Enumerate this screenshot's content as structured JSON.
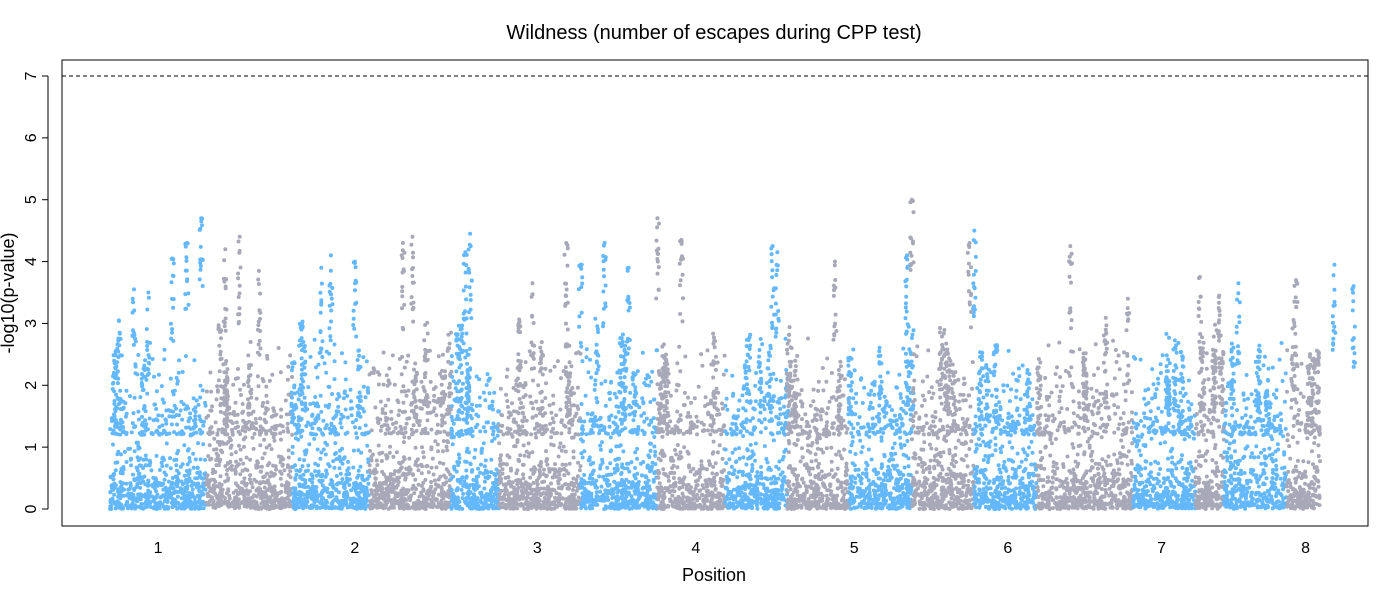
{
  "chart_data": {
    "type": "scatter",
    "subtype": "manhattan",
    "title": "Wildness (number of escapes during CPP test)",
    "xlabel": "Position",
    "ylabel": "-log10(p-value)",
    "ylim": [
      0,
      7
    ],
    "yticks": [
      0,
      1,
      2,
      3,
      4,
      5,
      6,
      7
    ],
    "threshold": 7,
    "threshold_style": "dashed",
    "grid": false,
    "legend": "none",
    "colors": {
      "odd": "#63b8ff",
      "even": "#a8a9b8",
      "axis": "#000000"
    },
    "chromosomes": [
      {
        "label": "1",
        "start": 0.0,
        "end": 1.0,
        "color": "#63b8ff"
      },
      {
        "label": "1",
        "start": 1.0,
        "end": 1.9,
        "color": "#a8a9b8"
      },
      {
        "label": "2",
        "start": 1.9,
        "end": 2.7,
        "color": "#63b8ff"
      },
      {
        "label": "2",
        "start": 2.7,
        "end": 3.55,
        "color": "#a8a9b8"
      },
      {
        "label": "3",
        "start": 3.55,
        "end": 4.05,
        "color": "#63b8ff"
      },
      {
        "label": "3",
        "start": 4.05,
        "end": 4.9,
        "color": "#a8a9b8"
      },
      {
        "label": "4",
        "start": 4.9,
        "end": 5.7,
        "color": "#63b8ff"
      },
      {
        "label": "4",
        "start": 5.7,
        "end": 6.4,
        "color": "#a8a9b8"
      },
      {
        "label": "5",
        "start": 6.4,
        "end": 7.05,
        "color": "#63b8ff"
      },
      {
        "label": "5",
        "start": 7.05,
        "end": 7.7,
        "color": "#a8a9b8"
      },
      {
        "label": "6",
        "start": 7.7,
        "end": 8.35,
        "color": "#63b8ff"
      },
      {
        "label": "6",
        "start": 8.35,
        "end": 9.0,
        "color": "#a8a9b8"
      },
      {
        "label": "7",
        "start": 9.0,
        "end": 9.65,
        "color": "#63b8ff"
      },
      {
        "label": "7",
        "start": 9.65,
        "end": 10.65,
        "color": "#a8a9b8"
      },
      {
        "label": "8",
        "start": 10.65,
        "end": 11.3,
        "color": "#63b8ff"
      },
      {
        "label": "8",
        "start": 11.3,
        "end": 11.6,
        "color": "#a8a9b8"
      },
      {
        "label": "8",
        "start": 11.6,
        "end": 12.25,
        "color": "#63b8ff"
      },
      {
        "label": "8",
        "start": 12.25,
        "end": 12.6,
        "color": "#a8a9b8"
      }
    ],
    "xlim": [
      -0.5,
      13.1
    ],
    "xticks": [
      {
        "label": "1",
        "x": 0.5
      },
      {
        "label": "2",
        "x": 2.55
      },
      {
        "label": "3",
        "x": 4.45
      },
      {
        "label": "4",
        "x": 6.1
      },
      {
        "label": "5",
        "x": 7.75
      },
      {
        "label": "6",
        "x": 9.35
      },
      {
        "label": "7",
        "x": 10.95
      },
      {
        "label": "8",
        "x": 12.45
      }
    ],
    "peaks": [
      {
        "x": 0.95,
        "y": 4.7
      },
      {
        "x": 0.8,
        "y": 4.3
      },
      {
        "x": 0.65,
        "y": 4.05
      },
      {
        "x": 0.25,
        "y": 3.55
      },
      {
        "x": 0.4,
        "y": 3.5
      },
      {
        "x": 1.35,
        "y": 4.4
      },
      {
        "x": 1.2,
        "y": 4.2
      },
      {
        "x": 1.55,
        "y": 3.85
      },
      {
        "x": 2.3,
        "y": 4.1
      },
      {
        "x": 2.2,
        "y": 3.9
      },
      {
        "x": 2.55,
        "y": 4.0
      },
      {
        "x": 3.05,
        "y": 4.3
      },
      {
        "x": 3.15,
        "y": 4.4
      },
      {
        "x": 3.75,
        "y": 4.45
      },
      {
        "x": 3.7,
        "y": 4.15
      },
      {
        "x": 4.4,
        "y": 3.65
      },
      {
        "x": 4.75,
        "y": 4.3
      },
      {
        "x": 4.9,
        "y": 3.95
      },
      {
        "x": 5.15,
        "y": 4.3
      },
      {
        "x": 5.4,
        "y": 3.9
      },
      {
        "x": 5.7,
        "y": 4.7
      },
      {
        "x": 5.95,
        "y": 4.35
      },
      {
        "x": 6.9,
        "y": 4.25
      },
      {
        "x": 6.95,
        "y": 4.15
      },
      {
        "x": 7.55,
        "y": 4.0
      },
      {
        "x": 8.35,
        "y": 5.0
      },
      {
        "x": 8.3,
        "y": 4.1
      },
      {
        "x": 9.0,
        "y": 4.5
      },
      {
        "x": 8.95,
        "y": 4.3
      },
      {
        "x": 10.0,
        "y": 4.25
      },
      {
        "x": 10.6,
        "y": 3.4
      },
      {
        "x": 11.35,
        "y": 3.75
      },
      {
        "x": 11.55,
        "y": 3.45
      },
      {
        "x": 11.75,
        "y": 3.65
      },
      {
        "x": 12.35,
        "y": 3.7
      },
      {
        "x": 12.75,
        "y": 3.95
      },
      {
        "x": 12.95,
        "y": 3.6
      }
    ],
    "baseline_max": 1.6,
    "point_size": "small"
  }
}
